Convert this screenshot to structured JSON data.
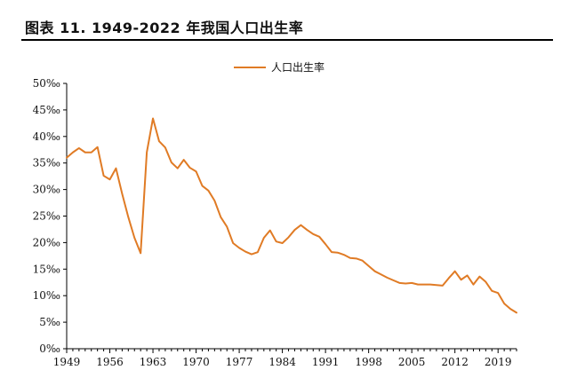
{
  "figure": {
    "title": "图表 11. 1949-2022 年我国人口出生率"
  },
  "colors": {
    "series": "#E07B25",
    "axis": "#000000"
  },
  "chart_data": {
    "type": "line",
    "title": "",
    "xlabel": "",
    "ylabel": "",
    "xlim": [
      1949,
      2022
    ],
    "ylim": [
      0,
      50
    ],
    "y_unit": "‰",
    "grid": false,
    "legend_position": "top-center",
    "x_tick_labels": [
      "1949",
      "1956",
      "1963",
      "1970",
      "1977",
      "1984",
      "1991",
      "1998",
      "2005",
      "2012",
      "2019"
    ],
    "x_tick_values": [
      1949,
      1956,
      1963,
      1970,
      1977,
      1984,
      1991,
      1998,
      2005,
      2012,
      2019
    ],
    "y_tick_labels": [
      "0‰",
      "5‰",
      "10‰",
      "15‰",
      "20‰",
      "25‰",
      "30‰",
      "35‰",
      "40‰",
      "45‰",
      "50‰"
    ],
    "y_tick_values": [
      0,
      5,
      10,
      15,
      20,
      25,
      30,
      35,
      40,
      45,
      50
    ],
    "series": [
      {
        "name": "人口出生率",
        "x": [
          1949,
          1950,
          1951,
          1952,
          1953,
          1954,
          1955,
          1956,
          1957,
          1958,
          1959,
          1960,
          1961,
          1962,
          1963,
          1964,
          1965,
          1966,
          1967,
          1968,
          1969,
          1970,
          1971,
          1972,
          1973,
          1974,
          1975,
          1976,
          1977,
          1978,
          1979,
          1980,
          1981,
          1982,
          1983,
          1984,
          1985,
          1986,
          1987,
          1988,
          1989,
          1990,
          1991,
          1992,
          1993,
          1994,
          1995,
          1996,
          1997,
          1998,
          1999,
          2000,
          2001,
          2002,
          2003,
          2004,
          2005,
          2006,
          2007,
          2008,
          2009,
          2010,
          2011,
          2012,
          2013,
          2014,
          2015,
          2016,
          2017,
          2018,
          2019,
          2020,
          2021,
          2022
        ],
        "values": [
          36.0,
          37.0,
          37.8,
          37.0,
          37.0,
          38.0,
          32.6,
          31.9,
          34.0,
          29.2,
          24.8,
          20.9,
          18.0,
          37.0,
          43.4,
          39.1,
          37.9,
          35.1,
          34.0,
          35.6,
          34.1,
          33.4,
          30.7,
          29.8,
          27.9,
          24.8,
          23.0,
          19.9,
          19.0,
          18.3,
          17.8,
          18.2,
          20.9,
          22.3,
          20.2,
          19.9,
          21.0,
          22.4,
          23.3,
          22.4,
          21.6,
          21.1,
          19.7,
          18.2,
          18.1,
          17.7,
          17.1,
          17.0,
          16.6,
          15.6,
          14.6,
          14.0,
          13.4,
          12.9,
          12.4,
          12.3,
          12.4,
          12.1,
          12.1,
          12.1,
          12.0,
          11.9,
          13.3,
          14.6,
          13.0,
          13.8,
          12.1,
          13.6,
          12.6,
          10.9,
          10.5,
          8.5,
          7.5,
          6.8
        ]
      }
    ]
  }
}
